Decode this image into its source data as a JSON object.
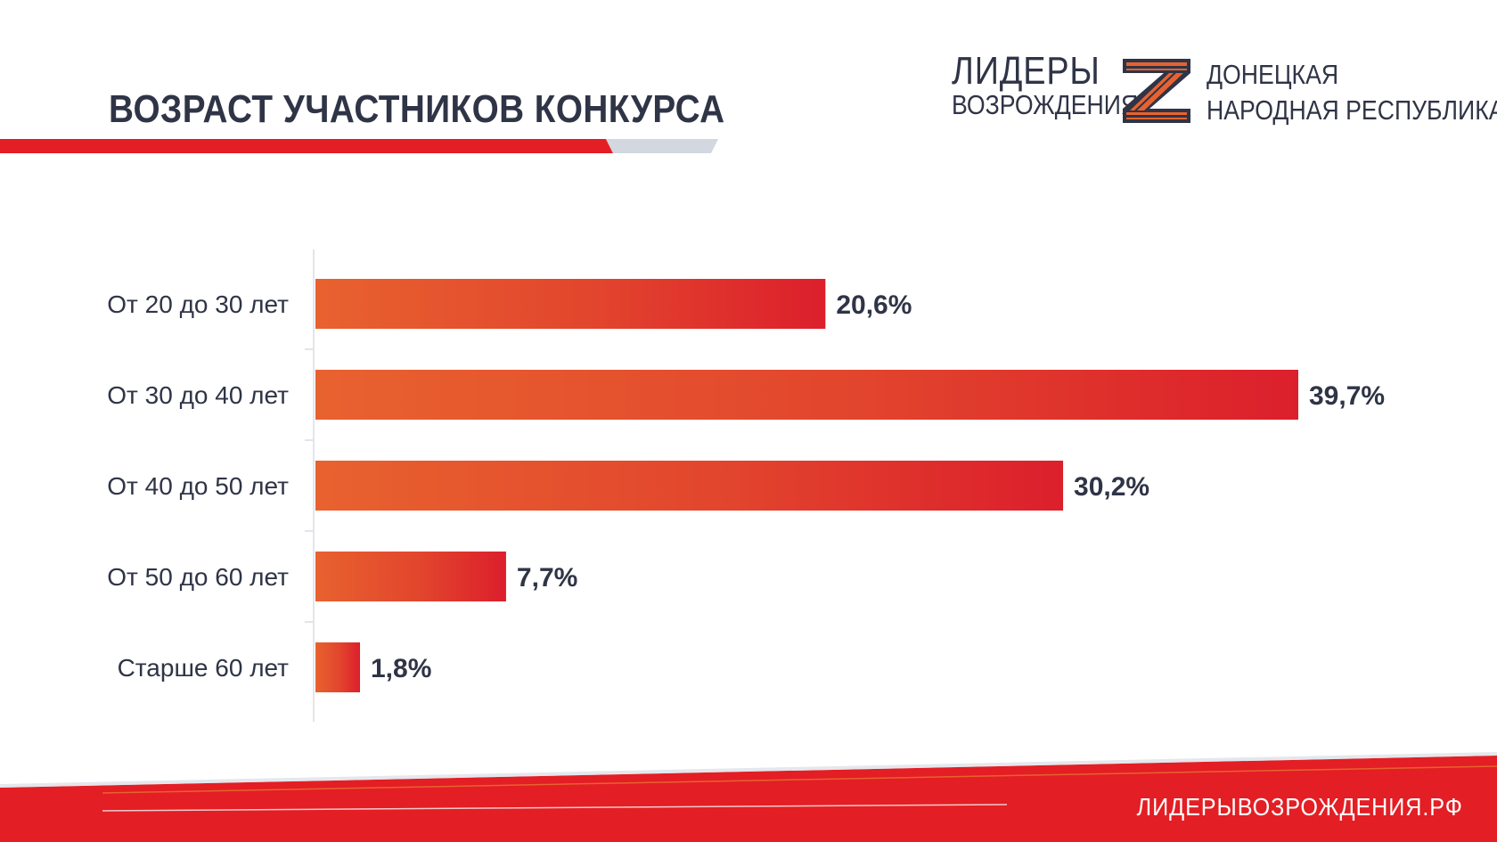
{
  "header": {
    "title": "ВОЗРАСТ УЧАСТНИКОВ КОНКУРСА"
  },
  "logo": {
    "line1": "ЛИДЕРЫ",
    "line2": "ВОЗРОЖДЕНИЯ",
    "region_line1": "ДОНЕЦКАЯ",
    "region_line2": "НАРОДНАЯ РЕСПУБЛИКА"
  },
  "footer": {
    "website": "ЛИДЕРЫВОЗРОЖДЕНИЯ.РФ"
  },
  "colors": {
    "bar_start": "#E8622F",
    "bar_end": "#DC1F2C",
    "accent_red": "#E31E24",
    "accent_gray": "#D2D7E0",
    "text_dark": "#2F3446"
  },
  "chart_data": {
    "type": "bar",
    "orientation": "horizontal",
    "categories": [
      "От 20 до 30 лет",
      "От 30 до 40 лет",
      "От 40 до 50 лет",
      "От 50 до 60 лет",
      "Старше 60 лет"
    ],
    "values": [
      20.6,
      39.7,
      30.2,
      7.7,
      1.8
    ],
    "value_labels": [
      "20,6%",
      "39,7%",
      "30,2%",
      "7,7%",
      "1,8%"
    ],
    "xlim": [
      0,
      39.7
    ],
    "grid": false,
    "legend": "none"
  }
}
